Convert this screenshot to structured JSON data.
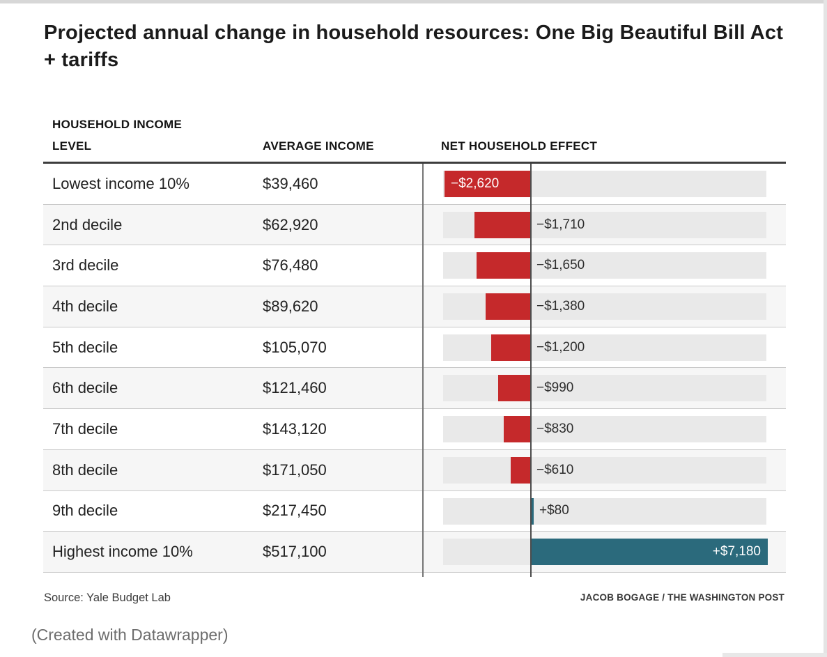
{
  "chart_data": {
    "type": "bar",
    "title": "Projected annual change in household resources: One Big Beautiful Bill Act + tariffs",
    "columns": {
      "level": "HOUSEHOLD INCOME\nLEVEL",
      "average_income": "AVERAGE INCOME",
      "net_effect": "NET HOUSEHOLD EFFECT"
    },
    "axis": {
      "min": -2620,
      "max": 7180,
      "zero_line": true
    },
    "legend_position": "none",
    "colors": {
      "negative_bar": "#c5292b",
      "positive_bar": "#2b6a7c",
      "track": "#e9e9e9",
      "inside_label": "#ffffff",
      "outside_label": "#2e2e2e"
    },
    "rows": [
      {
        "level": "Lowest income 10%",
        "average_income": "$39,460",
        "effect": -2620,
        "effect_label": "−$2,620"
      },
      {
        "level": "2nd decile",
        "average_income": "$62,920",
        "effect": -1710,
        "effect_label": "−$1,710"
      },
      {
        "level": "3rd decile",
        "average_income": "$76,480",
        "effect": -1650,
        "effect_label": "−$1,650"
      },
      {
        "level": "4th decile",
        "average_income": "$89,620",
        "effect": -1380,
        "effect_label": "−$1,380"
      },
      {
        "level": "5th decile",
        "average_income": "$105,070",
        "effect": -1200,
        "effect_label": "−$1,200"
      },
      {
        "level": "6th decile",
        "average_income": "$121,460",
        "effect": -990,
        "effect_label": "−$990"
      },
      {
        "level": "7th decile",
        "average_income": "$143,120",
        "effect": -830,
        "effect_label": "−$830"
      },
      {
        "level": "8th decile",
        "average_income": "$171,050",
        "effect": -610,
        "effect_label": "−$610"
      },
      {
        "level": "9th decile",
        "average_income": "$217,450",
        "effect": 80,
        "effect_label": "+$80"
      },
      {
        "level": "Highest income 10%",
        "average_income": "$517,100",
        "effect": 7180,
        "effect_label": "+$7,180"
      }
    ]
  },
  "footer": {
    "source": "Source: Yale Budget Lab",
    "credit": "JACOB BOGAGE / THE WASHINGTON POST",
    "created_with": "(Created with Datawrapper)"
  }
}
